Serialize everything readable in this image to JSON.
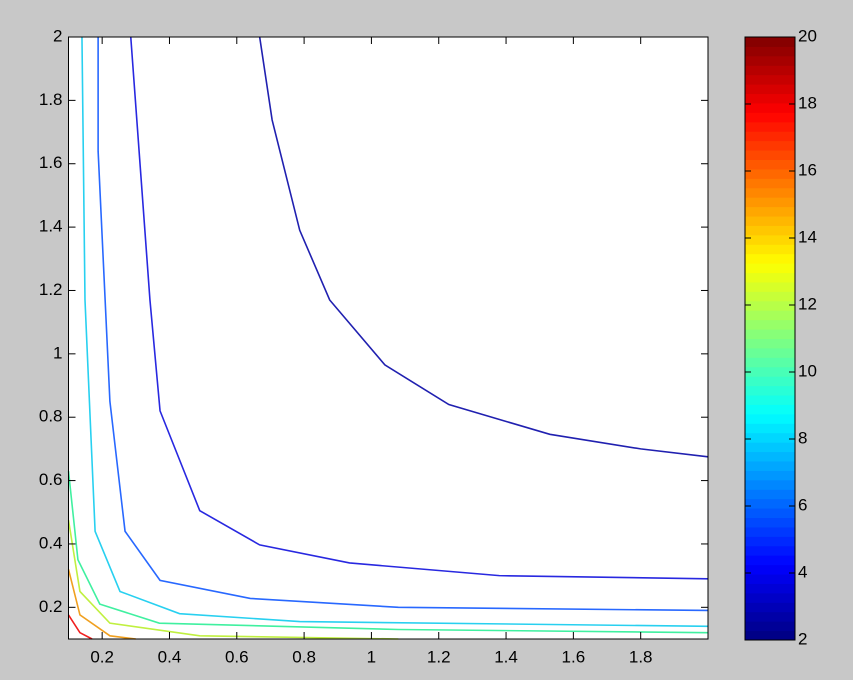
{
  "chart_data": {
    "type": "contour",
    "xlim": [
      0.1,
      2
    ],
    "ylim": [
      0.1,
      2
    ],
    "xticks": [
      0.2,
      0.4,
      0.6,
      0.8,
      1,
      1.2,
      1.4,
      1.6,
      1.8
    ],
    "yticks": [
      0.2,
      0.4,
      0.6,
      0.8,
      1,
      1.2,
      1.4,
      1.6,
      1.8,
      2
    ],
    "colorbar": {
      "colormap": "jet",
      "clim": [
        2,
        20
      ],
      "ticks": [
        2,
        4,
        6,
        8,
        10,
        12,
        14,
        16,
        18,
        20
      ]
    },
    "series": [
      {
        "color": "#2020b0",
        "x": [
          0.668,
          0.705,
          0.787,
          0.876,
          1.04,
          1.23,
          1.53,
          1.8,
          2
        ],
        "values": [
          2,
          1.738,
          1.39,
          1.17,
          0.965,
          0.84,
          0.746,
          0.7,
          0.675
        ]
      },
      {
        "color": "#2828e0",
        "x": [
          0.285,
          0.342,
          0.372,
          0.49,
          0.668,
          0.935,
          1.38,
          2
        ],
        "values": [
          2,
          1.17,
          0.82,
          0.505,
          0.397,
          0.34,
          0.3,
          0.29
        ]
      },
      {
        "color": "#2868ff",
        "x": [
          0.188,
          0.188,
          0.223,
          0.268,
          0.372,
          0.64,
          1.08,
          2
        ],
        "values": [
          2,
          1.64,
          0.85,
          0.44,
          0.285,
          0.228,
          0.2,
          0.19
        ]
      },
      {
        "color": "#28d0f0",
        "x": [
          0.14,
          0.149,
          0.179,
          0.253,
          0.43,
          0.787,
          2
        ],
        "values": [
          2,
          1.17,
          0.44,
          0.25,
          0.18,
          0.155,
          0.14
        ]
      },
      {
        "color": "#40f0a0",
        "x": [
          0.1,
          0.128,
          0.193,
          0.37,
          1.08,
          2
        ],
        "values": [
          0.63,
          0.35,
          0.21,
          0.15,
          0.13,
          0.12
        ]
      },
      {
        "color": "#c0f040",
        "x": [
          0.1,
          0.134,
          0.223,
          0.49,
          1.08
        ],
        "values": [
          0.475,
          0.25,
          0.15,
          0.11,
          0.1
        ]
      },
      {
        "color": "#f0a020",
        "x": [
          0.1,
          0.134,
          0.223,
          0.3
        ],
        "values": [
          0.32,
          0.176,
          0.11,
          0.1
        ]
      },
      {
        "color": "#f02020",
        "x": [
          0.1,
          0.134,
          0.17
        ],
        "values": [
          0.176,
          0.12,
          0.1
        ]
      }
    ]
  }
}
